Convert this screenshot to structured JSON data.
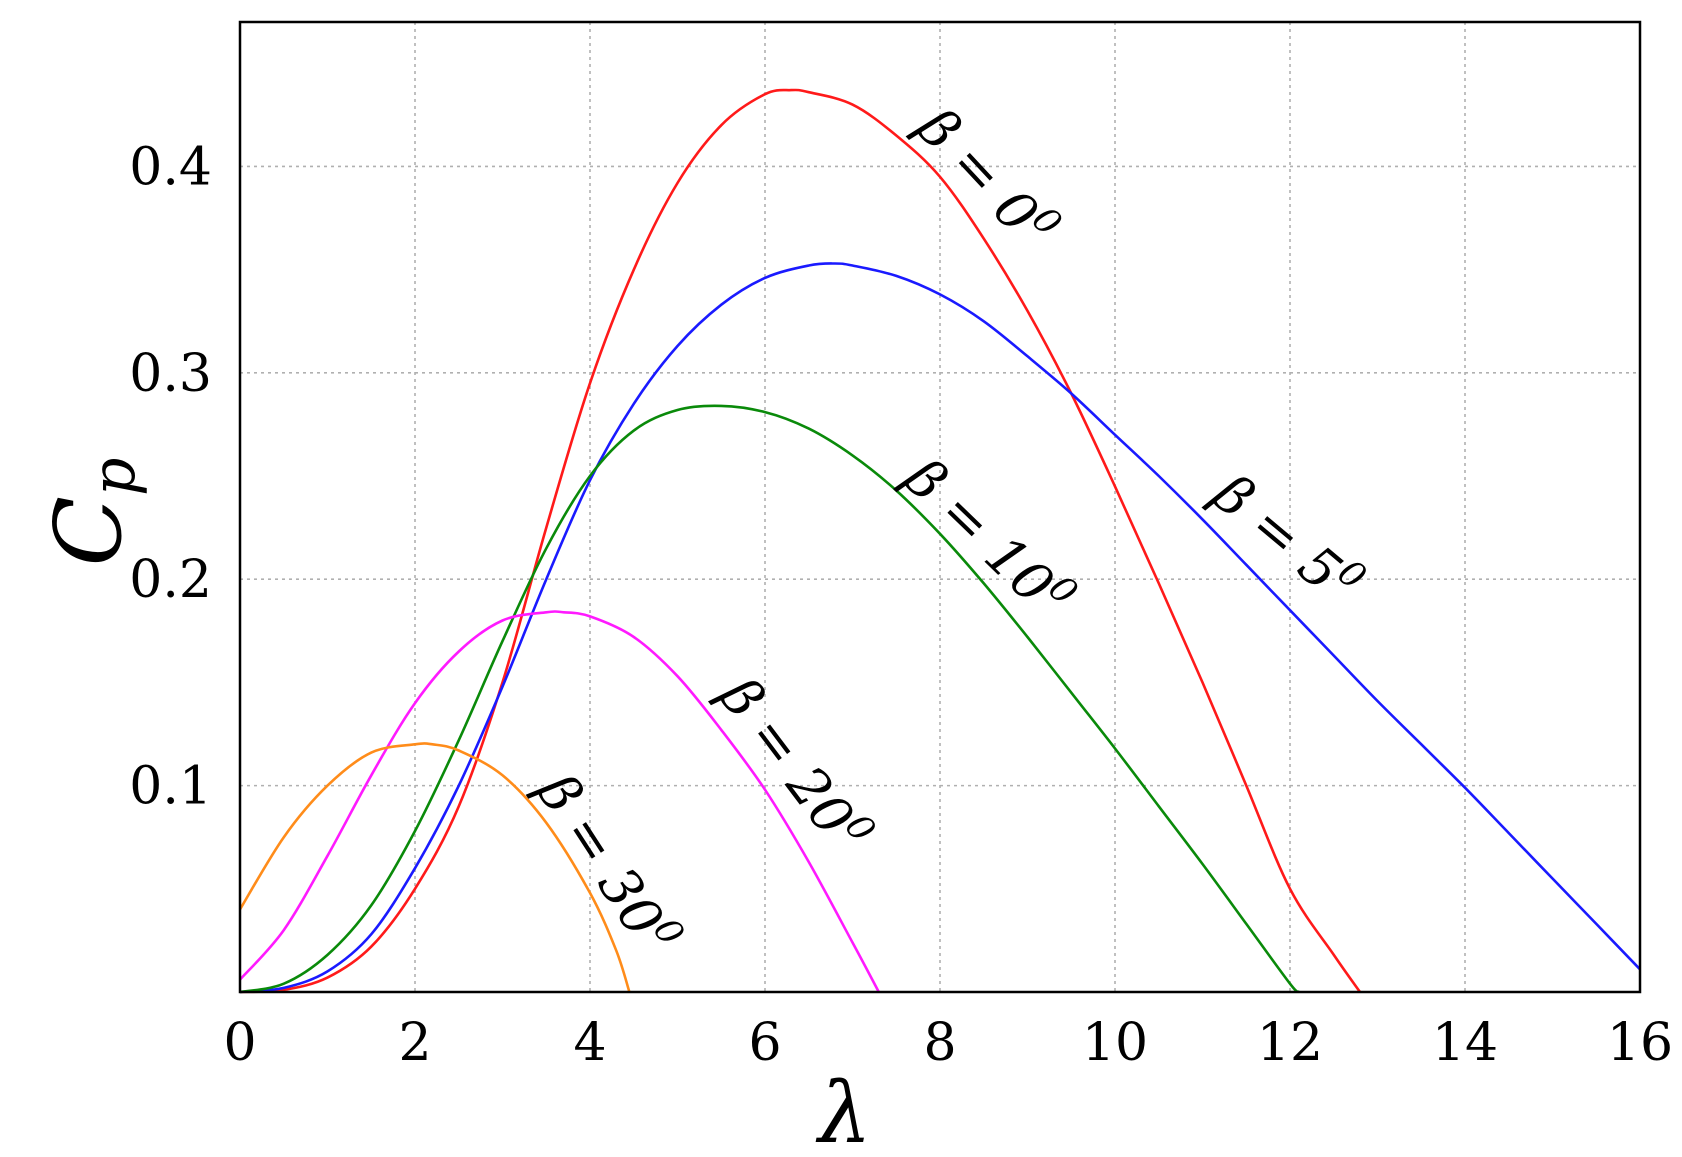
{
  "chart_data": {
    "type": "line",
    "title": "",
    "xlabel": "λ",
    "ylabel": "C",
    "ylabel_subscript": "p",
    "xlim": [
      0,
      16
    ],
    "ylim": [
      0,
      0.47
    ],
    "xticks": [
      0,
      2,
      4,
      6,
      8,
      10,
      12,
      14,
      16
    ],
    "xtick_labels": [
      "0",
      "2",
      "4",
      "6",
      "8",
      "10",
      "12",
      "14",
      "16"
    ],
    "yticks": [
      0.1,
      0.2,
      0.3,
      0.4
    ],
    "ytick_labels": [
      "0.1",
      "0.2",
      "0.3",
      "0.4"
    ],
    "grid": true,
    "legend": "inline labels next to curves",
    "series": [
      {
        "label_prefix": "β = 0",
        "label_sup": "0",
        "color": "#ff1a1a",
        "x": [
          0,
          0.5,
          1,
          1.5,
          2,
          2.5,
          3,
          3.5,
          4,
          4.5,
          5,
          5.5,
          6,
          6.3,
          6.5,
          7,
          7.5,
          8,
          8.5,
          9,
          9.5,
          10,
          10.5,
          11,
          11.5,
          12,
          12.5,
          12.8
        ],
        "y": [
          0,
          0.001,
          0.007,
          0.022,
          0.05,
          0.09,
          0.15,
          0.225,
          0.295,
          0.35,
          0.392,
          0.42,
          0.435,
          0.437,
          0.436,
          0.43,
          0.415,
          0.395,
          0.365,
          0.33,
          0.29,
          0.245,
          0.198,
          0.15,
          0.1,
          0.05,
          0.018,
          0
        ]
      },
      {
        "label_prefix": "β = 5",
        "label_sup": "0",
        "color": "#1a1aff",
        "x": [
          0,
          0.5,
          1,
          1.5,
          2,
          2.5,
          3,
          3.5,
          4,
          4.5,
          5,
          5.5,
          6,
          6.5,
          6.8,
          7,
          7.5,
          8,
          8.5,
          9,
          9.5,
          10,
          10.5,
          11,
          11.5,
          12,
          12.5,
          13,
          13.5,
          14,
          14.5,
          15,
          15.5,
          16
        ],
        "y": [
          0,
          0.002,
          0.01,
          0.028,
          0.06,
          0.1,
          0.148,
          0.2,
          0.248,
          0.285,
          0.313,
          0.333,
          0.346,
          0.352,
          0.353,
          0.352,
          0.347,
          0.338,
          0.325,
          0.308,
          0.29,
          0.27,
          0.25,
          0.229,
          0.207,
          0.185,
          0.163,
          0.141,
          0.12,
          0.099,
          0.077,
          0.055,
          0.033,
          0.011
        ]
      },
      {
        "label_prefix": "β = 10",
        "label_sup": "0",
        "color": "#0a8a0a",
        "x": [
          0,
          0.5,
          1,
          1.5,
          2,
          2.5,
          3,
          3.5,
          4,
          4.5,
          5,
          5.5,
          6,
          6.5,
          7,
          7.5,
          8,
          8.5,
          9,
          9.5,
          10,
          10.5,
          11,
          11.5,
          12,
          12.1
        ],
        "y": [
          0,
          0.004,
          0.018,
          0.042,
          0.078,
          0.122,
          0.17,
          0.215,
          0.25,
          0.272,
          0.282,
          0.284,
          0.281,
          0.273,
          0.26,
          0.243,
          0.222,
          0.198,
          0.172,
          0.145,
          0.118,
          0.09,
          0.062,
          0.033,
          0.004,
          0
        ]
      },
      {
        "label_prefix": "β = 20",
        "label_sup": "0",
        "color": "#ff1aff",
        "x": [
          0,
          0.5,
          1,
          1.5,
          2,
          2.5,
          3,
          3.5,
          3.7,
          4,
          4.5,
          5,
          5.5,
          6,
          6.5,
          7,
          7.3
        ],
        "y": [
          0.006,
          0.03,
          0.066,
          0.105,
          0.14,
          0.165,
          0.18,
          0.184,
          0.184,
          0.182,
          0.172,
          0.153,
          0.127,
          0.098,
          0.063,
          0.024,
          0
        ]
      },
      {
        "label_prefix": "β = 30",
        "label_sup": "0",
        "color": "#ff8c1a",
        "x": [
          0,
          0.5,
          1,
          1.5,
          2,
          2.2,
          2.5,
          3,
          3.5,
          4,
          4.3,
          4.45
        ],
        "y": [
          0.04,
          0.075,
          0.1,
          0.116,
          0.12,
          0.12,
          0.117,
          0.105,
          0.082,
          0.048,
          0.02,
          0
        ]
      }
    ]
  }
}
